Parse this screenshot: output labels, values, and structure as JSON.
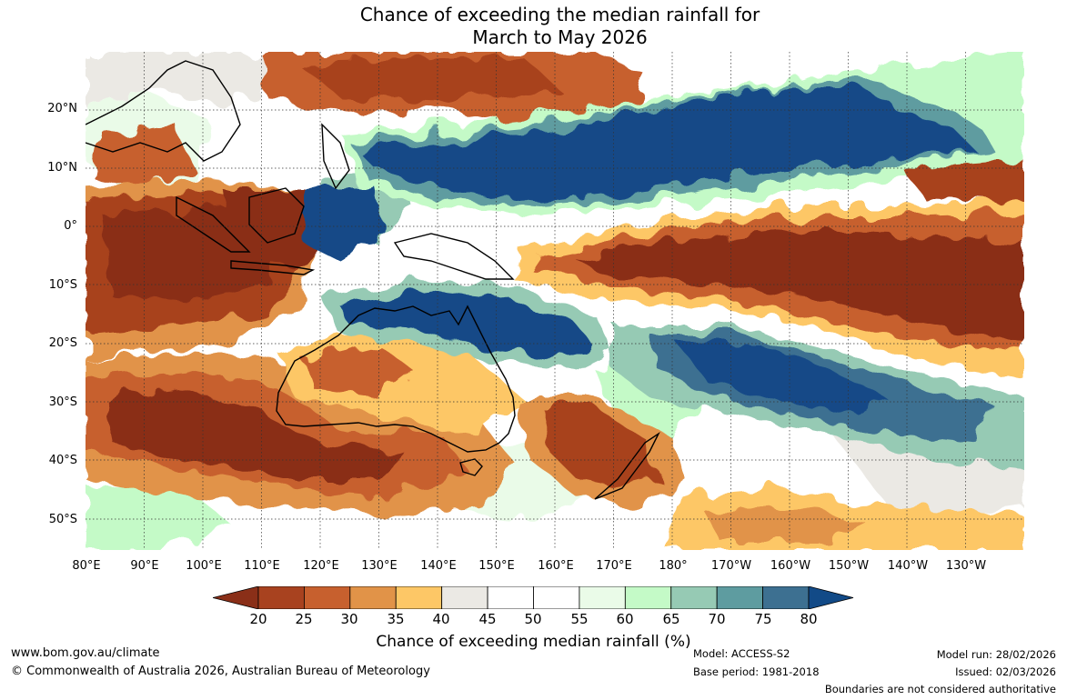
{
  "title": {
    "line1": "Chance of exceeding the median rainfall for",
    "line2": "March to May 2026"
  },
  "map": {
    "lat_labels": [
      "20°N",
      "10°N",
      "0°",
      "10°S",
      "20°S",
      "30°S",
      "40°S",
      "50°S"
    ],
    "lon_labels": [
      "80°E",
      "90°E",
      "100°E",
      "110°E",
      "120°E",
      "130°E",
      "140°E",
      "150°E",
      "160°E",
      "170°E",
      "180°",
      "170°W",
      "160°W",
      "150°W",
      "140°W",
      "130°W"
    ],
    "colors": {
      "c20": "#8a2f18",
      "c25": "#a8421f",
      "c30": "#c7602e",
      "c35": "#e19348",
      "c40": "#fdc766",
      "c45": "#ebe9e4",
      "c50": "#ffffff",
      "c55": "#ffffff",
      "c60": "#eafbe8",
      "c65": "#c4fac7",
      "c70": "#96cab4",
      "c75": "#5e9ca0",
      "c80": "#3d7091",
      "c85": "#124a87"
    }
  },
  "colorbar": {
    "ticks": [
      "20",
      "25",
      "30",
      "35",
      "40",
      "45",
      "50",
      "55",
      "60",
      "65",
      "70",
      "75",
      "80"
    ],
    "colors": [
      "#8a2f18",
      "#a8421f",
      "#c7602e",
      "#e19348",
      "#fdc766",
      "#ebe9e4",
      "#ffffff",
      "#ffffff",
      "#eafbe8",
      "#c4fac7",
      "#96cab4",
      "#5e9ca0",
      "#3d7091",
      "#124a87"
    ],
    "label": "Chance of exceeding median rainfall (%)"
  },
  "footer": {
    "website": "www.bom.gov.au/climate",
    "copyright": "© Commonwealth of Australia 2026, Australian Bureau of Meteorology",
    "model": "Model: ACCESS-S2",
    "base_period": "Base period: 1981-2018",
    "model_run": "Model run: 28/02/2026",
    "issued": "Issued: 02/03/2026",
    "disclaimer": "Boundaries are not considered authoritative"
  }
}
